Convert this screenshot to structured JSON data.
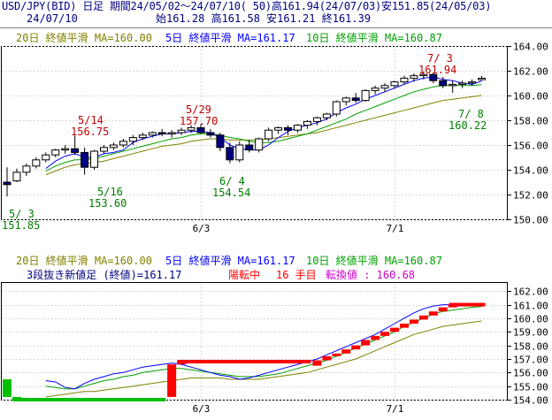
{
  "header": {
    "line1": "USD/JPY(BID) 日足 期間24/05/02～24/07/10( 50)高161.94(24/07/03)安151.85(24/05/03)",
    "date": "24/07/10",
    "ohlc": "始161.28 高161.58 安161.21 終161.39"
  },
  "legend": {
    "ma20": "20日 終値平滑 MA=160.00",
    "ma5": "5日 終値平滑 MA=161.17",
    "ma10": "10日 終値平滑 MA=160.87"
  },
  "lower_info": {
    "sanbon": "3段抜き新値足 (終値)=161.17",
    "state": "陽転中",
    "count": "16 手目",
    "turn": "転換値 : 160.68"
  },
  "annotations": [
    {
      "label": "5/ 3",
      "value": "151.85"
    },
    {
      "label": "5/14",
      "value": "156.75"
    },
    {
      "label": "5/16",
      "value": "153.60"
    },
    {
      "label": "5/29",
      "value": "157.70"
    },
    {
      "label": "6/ 4",
      "value": "154.54"
    },
    {
      "label": "7/ 3",
      "value": "161.94"
    },
    {
      "label": "7/ 8",
      "value": "160.22"
    }
  ],
  "x_tick_labels": [
    "6/3",
    "7/1"
  ],
  "colors": {
    "up_candle": "#ffffff",
    "down_candle": "#000080",
    "ma20": "#808000",
    "ma5": "#0000ff",
    "ma10": "#00a000",
    "up_block": "#ff0000",
    "down_block": "#00c000",
    "annotation_high": "#c00000",
    "annotation_low": "#008000",
    "state_text": "#ff0000",
    "turn_text": "#cc00cc"
  },
  "chart_data": [
    {
      "type": "candlestick",
      "ylim": [
        150,
        164
      ],
      "yticks": [
        150.0,
        152.0,
        154.0,
        156.0,
        158.0,
        160.0,
        162.0,
        164.0
      ],
      "grid": true,
      "candles": [
        [
          153.0,
          154.2,
          151.85,
          152.8
        ],
        [
          153.1,
          154.1,
          153.0,
          153.8
        ],
        [
          153.8,
          154.5,
          153.5,
          154.3
        ],
        [
          154.3,
          155.0,
          154.1,
          154.8
        ],
        [
          154.8,
          155.4,
          154.6,
          155.2
        ],
        [
          155.2,
          155.7,
          155.0,
          155.6
        ],
        [
          155.6,
          156.0,
          155.3,
          155.7
        ],
        [
          155.7,
          156.75,
          155.2,
          155.4
        ],
        [
          155.4,
          155.8,
          153.6,
          154.2
        ],
        [
          154.2,
          155.6,
          154.0,
          155.5
        ],
        [
          155.5,
          156.0,
          155.3,
          155.8
        ],
        [
          155.8,
          156.2,
          155.6,
          156.0
        ],
        [
          156.0,
          156.5,
          155.8,
          156.3
        ],
        [
          156.3,
          156.8,
          156.0,
          156.6
        ],
        [
          156.6,
          157.0,
          156.4,
          156.8
        ],
        [
          156.8,
          157.1,
          156.6,
          157.0
        ],
        [
          157.0,
          157.3,
          156.7,
          156.9
        ],
        [
          156.9,
          157.2,
          156.6,
          157.0
        ],
        [
          157.0,
          157.4,
          156.8,
          157.2
        ],
        [
          157.2,
          157.6,
          157.0,
          157.4
        ],
        [
          157.4,
          157.7,
          156.9,
          157.0
        ],
        [
          157.0,
          157.3,
          156.6,
          156.8
        ],
        [
          156.8,
          157.0,
          155.5,
          155.8
        ],
        [
          155.8,
          156.2,
          154.54,
          154.8
        ],
        [
          154.8,
          156.3,
          154.6,
          156.0
        ],
        [
          156.0,
          156.4,
          155.4,
          155.6
        ],
        [
          155.6,
          156.6,
          155.4,
          156.5
        ],
        [
          156.5,
          157.4,
          156.3,
          157.2
        ],
        [
          157.2,
          157.5,
          156.9,
          157.4
        ],
        [
          157.4,
          157.6,
          156.8,
          157.2
        ],
        [
          157.2,
          157.7,
          157.0,
          157.6
        ],
        [
          157.6,
          158.0,
          157.3,
          157.9
        ],
        [
          157.9,
          158.3,
          157.6,
          158.2
        ],
        [
          158.2,
          158.6,
          158.0,
          158.5
        ],
        [
          158.5,
          159.6,
          158.3,
          159.5
        ],
        [
          159.5,
          159.9,
          159.2,
          159.8
        ],
        [
          159.8,
          160.2,
          159.4,
          159.6
        ],
        [
          159.6,
          160.5,
          159.5,
          160.4
        ],
        [
          160.4,
          160.8,
          160.1,
          160.6
        ],
        [
          160.6,
          161.0,
          160.3,
          160.8
        ],
        [
          160.8,
          161.2,
          160.6,
          161.1
        ],
        [
          161.1,
          161.6,
          160.9,
          161.4
        ],
        [
          161.4,
          161.8,
          161.1,
          161.6
        ],
        [
          161.6,
          161.94,
          161.3,
          161.7
        ],
        [
          161.7,
          161.8,
          161.0,
          161.2
        ],
        [
          161.2,
          161.5,
          160.6,
          160.8
        ],
        [
          160.8,
          161.2,
          160.22,
          160.9
        ],
        [
          160.9,
          161.2,
          160.6,
          161.0
        ],
        [
          161.0,
          161.3,
          160.8,
          161.1
        ],
        [
          161.28,
          161.58,
          161.21,
          161.39
        ]
      ],
      "series": [
        {
          "name": "20日 終値平滑",
          "values": [
            null,
            null,
            null,
            null,
            153.6,
            153.9,
            154.2,
            154.4,
            154.5,
            154.6,
            154.7,
            154.9,
            155.1,
            155.3,
            155.5,
            155.7,
            155.9,
            156.0,
            156.1,
            156.3,
            156.4,
            156.5,
            156.5,
            156.4,
            156.4,
            156.4,
            156.4,
            156.5,
            156.6,
            156.7,
            156.8,
            156.9,
            157.0,
            157.2,
            157.4,
            157.6,
            157.8,
            158.0,
            158.2,
            158.4,
            158.6,
            158.8,
            159.0,
            159.2,
            159.4,
            159.6,
            159.7,
            159.8,
            159.9,
            160.0
          ]
        },
        {
          "name": "5日 終値平滑",
          "values": [
            null,
            null,
            null,
            null,
            154.1,
            154.7,
            155.1,
            155.3,
            155.0,
            155.0,
            155.3,
            155.4,
            155.6,
            156.2,
            156.5,
            156.7,
            156.9,
            156.9,
            157.0,
            157.1,
            157.1,
            157.0,
            156.6,
            156.0,
            155.7,
            155.6,
            155.6,
            156.0,
            156.6,
            157.1,
            157.4,
            157.6,
            157.8,
            158.1,
            158.6,
            159.0,
            159.3,
            159.7,
            160.0,
            160.3,
            160.6,
            160.9,
            161.2,
            161.4,
            161.5,
            161.3,
            161.2,
            161.0,
            160.9,
            161.17
          ]
        },
        {
          "name": "10日 終値平滑",
          "values": [
            null,
            null,
            null,
            null,
            153.9,
            154.3,
            154.6,
            154.8,
            154.8,
            154.9,
            155.1,
            155.3,
            155.5,
            155.7,
            155.9,
            156.1,
            156.3,
            156.5,
            156.6,
            156.8,
            156.9,
            156.9,
            156.8,
            156.6,
            156.5,
            156.3,
            156.2,
            156.2,
            156.3,
            156.5,
            156.7,
            156.9,
            157.2,
            157.5,
            157.8,
            158.1,
            158.5,
            158.8,
            159.1,
            159.4,
            159.7,
            160.0,
            160.3,
            160.5,
            160.7,
            160.8,
            160.8,
            160.8,
            160.8,
            160.87
          ]
        }
      ],
      "x_labels": [
        {
          "index": 20,
          "label": "6/3"
        },
        {
          "index": 40,
          "label": "7/1"
        }
      ]
    },
    {
      "type": "new-price-blocks",
      "title": "3段抜き新値足 (終値)",
      "ylim": [
        154,
        162.6
      ],
      "yticks": [
        154.0,
        155.0,
        156.0,
        157.0,
        158.0,
        159.0,
        160.0,
        161.0,
        162.0
      ],
      "grid": true,
      "blocks": [
        {
          "i": 0,
          "dir": "down",
          "from": 155.5,
          "to": 154.2
        },
        {
          "i": 1,
          "dir": "down",
          "from": 154.2,
          "to": 153.9
        },
        {
          "i": 17,
          "dir": "up",
          "from": 154.2,
          "to": 156.6
        },
        {
          "i": 18,
          "dir": "up",
          "from": 156.6,
          "to": 156.9
        },
        {
          "i": 32,
          "dir": "up",
          "from": 156.5,
          "to": 156.9
        },
        {
          "i": 33,
          "dir": "up",
          "from": 156.9,
          "to": 157.2
        },
        {
          "i": 34,
          "dir": "up",
          "from": 157.2,
          "to": 157.4
        },
        {
          "i": 35,
          "dir": "up",
          "from": 157.4,
          "to": 157.7
        },
        {
          "i": 36,
          "dir": "up",
          "from": 157.7,
          "to": 158.0
        },
        {
          "i": 37,
          "dir": "up",
          "from": 158.0,
          "to": 158.4
        },
        {
          "i": 38,
          "dir": "up",
          "from": 158.4,
          "to": 158.7
        },
        {
          "i": 39,
          "dir": "up",
          "from": 158.7,
          "to": 159.0
        },
        {
          "i": 40,
          "dir": "up",
          "from": 159.0,
          "to": 159.3
        },
        {
          "i": 41,
          "dir": "up",
          "from": 159.3,
          "to": 159.6
        },
        {
          "i": 42,
          "dir": "up",
          "from": 159.6,
          "to": 159.9
        },
        {
          "i": 43,
          "dir": "up",
          "from": 159.9,
          "to": 160.2
        },
        {
          "i": 44,
          "dir": "up",
          "from": 160.2,
          "to": 160.5
        },
        {
          "i": 45,
          "dir": "up",
          "from": 160.5,
          "to": 160.8
        },
        {
          "i": 46,
          "dir": "up",
          "from": 160.8,
          "to": 161.0
        },
        {
          "i": 47,
          "dir": "up",
          "from": 161.0,
          "to": 161.1
        }
      ],
      "flat_segments": [
        {
          "from_i": 1,
          "to_i": 16,
          "level": 154.0,
          "dir": "down"
        },
        {
          "from_i": 18,
          "to_i": 31,
          "level": 156.8,
          "dir": "up"
        },
        {
          "from_i": 46,
          "to_i": 49,
          "level": 161.0,
          "dir": "up"
        }
      ],
      "series": [
        {
          "name": "20日 終値平滑",
          "values": [
            null,
            null,
            null,
            null,
            154.2,
            154.3,
            154.4,
            154.5,
            154.6,
            154.6,
            154.7,
            154.8,
            154.9,
            155.0,
            155.1,
            155.2,
            155.3,
            155.4,
            155.5,
            155.6,
            155.6,
            155.6,
            155.6,
            155.5,
            155.5,
            155.5,
            155.5,
            155.6,
            155.7,
            155.8,
            155.9,
            156.0,
            156.2,
            156.4,
            156.6,
            156.8,
            157.0,
            157.3,
            157.6,
            157.9,
            158.2,
            158.5,
            158.8,
            159.0,
            159.2,
            159.4,
            159.5,
            159.6,
            159.7,
            159.8
          ]
        },
        {
          "name": "5日 終値平滑",
          "values": [
            null,
            null,
            null,
            null,
            155.4,
            155.3,
            154.9,
            154.8,
            155.2,
            155.5,
            155.7,
            155.9,
            156.0,
            156.2,
            156.4,
            156.5,
            156.6,
            156.7,
            156.6,
            156.4,
            156.2,
            156.0,
            155.8,
            155.7,
            155.5,
            155.6,
            155.8,
            156.0,
            156.2,
            156.4,
            156.6,
            156.8,
            157.0,
            157.3,
            157.6,
            157.9,
            158.2,
            158.5,
            158.8,
            159.2,
            159.6,
            160.0,
            160.4,
            160.7,
            160.9,
            161.0,
            161.0,
            161.0,
            161.0,
            161.1
          ]
        },
        {
          "name": "10日 終値平滑",
          "values": [
            null,
            null,
            null,
            null,
            155.0,
            154.9,
            154.8,
            154.8,
            155.0,
            155.2,
            155.4,
            155.5,
            155.7,
            155.8,
            156.0,
            156.1,
            156.2,
            156.3,
            156.3,
            156.2,
            156.1,
            156.0,
            155.9,
            155.8,
            155.7,
            155.7,
            155.7,
            155.8,
            155.9,
            156.1,
            156.3,
            156.5,
            156.7,
            156.9,
            157.2,
            157.5,
            157.8,
            158.1,
            158.4,
            158.7,
            159.0,
            159.4,
            159.7,
            160.0,
            160.3,
            160.5,
            160.6,
            160.7,
            160.8,
            160.87
          ]
        }
      ]
    }
  ]
}
